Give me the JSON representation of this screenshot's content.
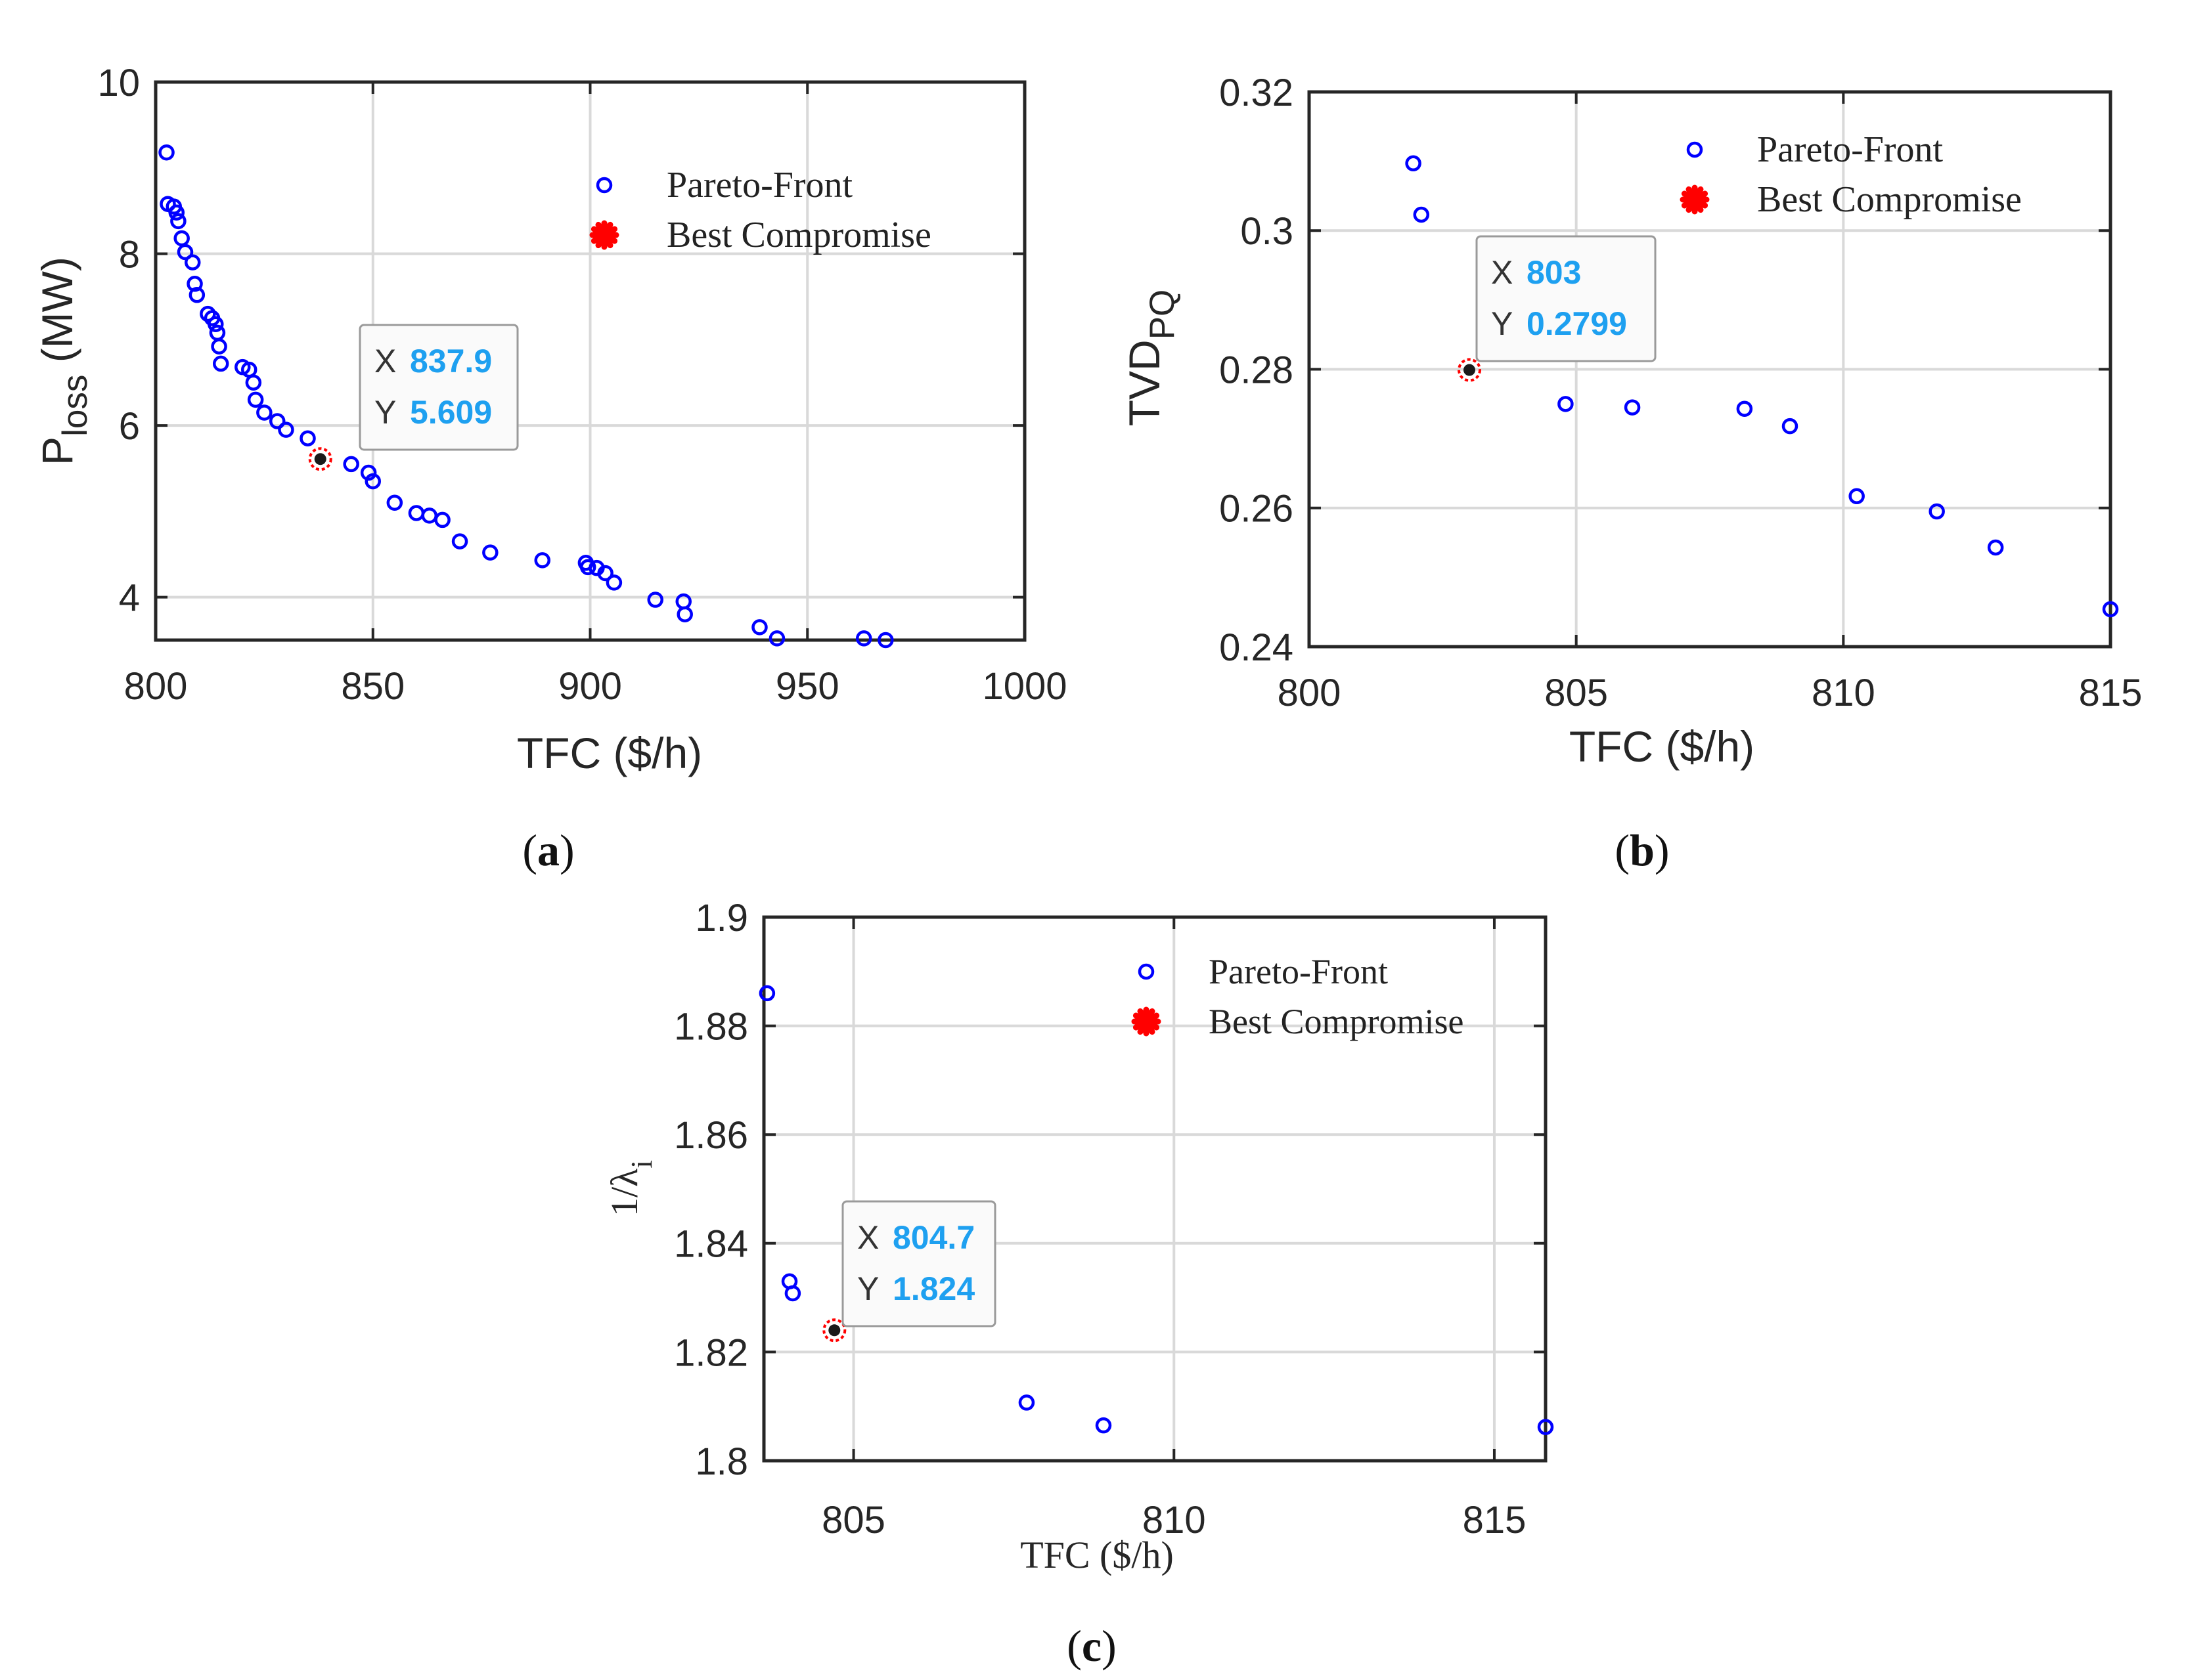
{
  "colors": {
    "series": "#0000ff",
    "best": "#ff0000",
    "tip_value": "#1ea0f0",
    "grid": "#d9d9d9",
    "axis": "#262626"
  },
  "legend": {
    "pareto": "Pareto-Front",
    "best": "Best Compromise"
  },
  "chart_data": [
    {
      "type": "scatter",
      "panel": "(a)",
      "xlabel": "TFC ($/h)",
      "ylabel": "P",
      "ylabel_sub": "loss",
      "ylabel_unit": " (MW)",
      "xlim": [
        800,
        1000
      ],
      "ylim": [
        3.5,
        10
      ],
      "xticks": [
        "800",
        "850",
        "900",
        "950",
        "1000"
      ],
      "yticks": [
        "4",
        "6",
        "8",
        "10"
      ],
      "legend_position": "top-right",
      "series": [
        {
          "name": "Pareto-Front",
          "points": [
            [
              802.5,
              9.18
            ],
            [
              802.8,
              8.58
            ],
            [
              804.2,
              8.55
            ],
            [
              804.8,
              8.48
            ],
            [
              805.2,
              8.38
            ],
            [
              806.0,
              8.18
            ],
            [
              806.8,
              8.02
            ],
            [
              808.5,
              7.9
            ],
            [
              809.0,
              7.65
            ],
            [
              809.5,
              7.52
            ],
            [
              812.0,
              7.3
            ],
            [
              813.0,
              7.25
            ],
            [
              813.8,
              7.18
            ],
            [
              814.2,
              7.08
            ],
            [
              814.6,
              6.92
            ],
            [
              815.0,
              6.72
            ],
            [
              820.0,
              6.68
            ],
            [
              821.5,
              6.65
            ],
            [
              822.5,
              6.5
            ],
            [
              823.0,
              6.3
            ],
            [
              825.0,
              6.15
            ],
            [
              828.0,
              6.05
            ],
            [
              830.0,
              5.95
            ],
            [
              835.0,
              5.85
            ],
            [
              845.0,
              5.55
            ],
            [
              849.0,
              5.45
            ],
            [
              850.0,
              5.35
            ],
            [
              855.0,
              5.1
            ],
            [
              860.0,
              4.98
            ],
            [
              863.0,
              4.95
            ],
            [
              866.0,
              4.9
            ],
            [
              870.0,
              4.65
            ],
            [
              877.0,
              4.52
            ],
            [
              889.0,
              4.43
            ],
            [
              899.0,
              4.4
            ],
            [
              899.5,
              4.35
            ],
            [
              901.5,
              4.34
            ],
            [
              903.5,
              4.28
            ],
            [
              905.5,
              4.17
            ],
            [
              915.0,
              3.97
            ],
            [
              921.5,
              3.95
            ],
            [
              921.8,
              3.8
            ],
            [
              939.0,
              3.65
            ],
            [
              943.0,
              3.52
            ],
            [
              963.0,
              3.52
            ],
            [
              968.0,
              3.5
            ]
          ]
        },
        {
          "name": "Best Compromise",
          "points": [
            [
              837.9,
              5.609
            ]
          ]
        }
      ],
      "datatip": {
        "x": "837.9",
        "y": "5.609"
      }
    },
    {
      "type": "scatter",
      "panel": "(b)",
      "xlabel": "TFC ($/h)",
      "ylabel": "TVD",
      "ylabel_sub": "PQ",
      "ylabel_unit": "",
      "xlim": [
        800,
        815
      ],
      "ylim": [
        0.24,
        0.32
      ],
      "xticks": [
        "800",
        "805",
        "810",
        "815"
      ],
      "yticks": [
        "0.24",
        "0.26",
        "0.28",
        "0.3",
        "0.32"
      ],
      "legend_position": "top-right",
      "series": [
        {
          "name": "Pareto-Front",
          "points": [
            [
              801.95,
              0.3097
            ],
            [
              802.1,
              0.3023
            ],
            [
              804.8,
              0.275
            ],
            [
              806.05,
              0.2745
            ],
            [
              808.15,
              0.2743
            ],
            [
              809.0,
              0.2718
            ],
            [
              810.25,
              0.2617
            ],
            [
              811.75,
              0.2595
            ],
            [
              812.85,
              0.2543
            ],
            [
              815.0,
              0.2454
            ]
          ]
        },
        {
          "name": "Best Compromise",
          "points": [
            [
              803.0,
              0.2799
            ]
          ]
        }
      ],
      "datatip": {
        "x": "803",
        "y": "0.2799"
      }
    },
    {
      "type": "scatter",
      "panel": "(c)",
      "xlabel": "TFC ($/h)",
      "ylabel": "1/λ",
      "ylabel_sub": "i",
      "ylabel_unit": "",
      "xlim": [
        803.6,
        815.8
      ],
      "ylim": [
        1.8,
        1.9
      ],
      "xticks": [
        "805",
        "810",
        "815"
      ],
      "xtick_values": [
        805,
        810,
        815
      ],
      "yticks": [
        "1.8",
        "1.82",
        "1.84",
        "1.86",
        "1.88",
        "1.9"
      ],
      "legend_position": "top-right",
      "series": [
        {
          "name": "Pareto-Front",
          "points": [
            [
              803.65,
              1.886
            ],
            [
              804.0,
              1.833
            ],
            [
              804.05,
              1.8308
            ],
            [
              807.7,
              1.8107
            ],
            [
              808.9,
              1.8065
            ],
            [
              815.8,
              1.8062
            ]
          ]
        },
        {
          "name": "Best Compromise",
          "points": [
            [
              804.7,
              1.824
            ]
          ]
        }
      ],
      "datatip": {
        "x": "804.7",
        "y": "1.824"
      }
    }
  ]
}
